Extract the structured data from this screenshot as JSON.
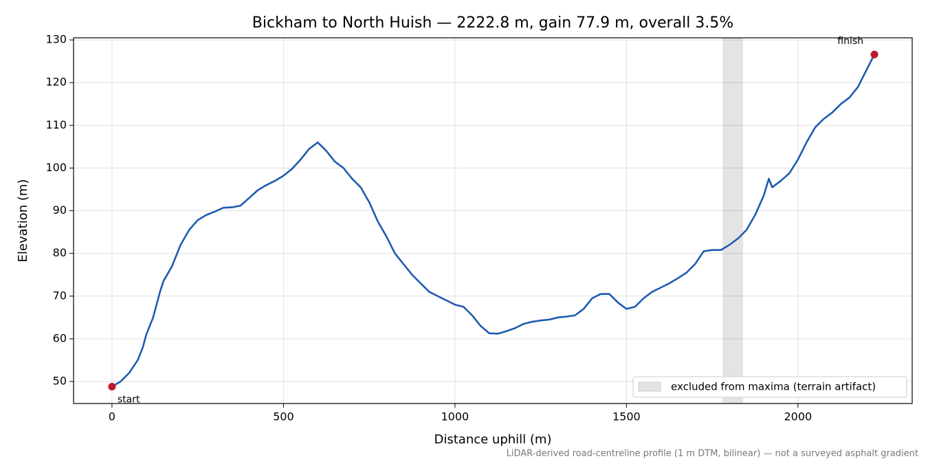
{
  "chart_data": {
    "type": "line",
    "title": "Bickham to North Huish — 2222.8 m, gain 77.9 m, overall 3.5%",
    "xlabel": "Distance uphill (m)",
    "ylabel": "Elevation (m)",
    "footnote": "LiDAR-derived road-centreline profile (1 m DTM, bilinear) — not a surveyed asphalt gradient",
    "x": [
      0,
      25,
      50,
      75,
      90,
      100,
      120,
      140,
      150,
      175,
      200,
      225,
      250,
      275,
      300,
      325,
      350,
      375,
      400,
      425,
      450,
      475,
      500,
      525,
      550,
      575,
      600,
      625,
      650,
      675,
      700,
      725,
      750,
      775,
      800,
      825,
      850,
      875,
      900,
      925,
      950,
      975,
      1000,
      1025,
      1050,
      1075,
      1100,
      1125,
      1150,
      1175,
      1200,
      1225,
      1250,
      1275,
      1300,
      1325,
      1350,
      1375,
      1400,
      1425,
      1450,
      1475,
      1500,
      1525,
      1550,
      1575,
      1600,
      1625,
      1650,
      1675,
      1700,
      1725,
      1750,
      1775,
      1800,
      1825,
      1850,
      1875,
      1900,
      1915,
      1925,
      1950,
      1975,
      2000,
      2025,
      2050,
      2075,
      2100,
      2125,
      2150,
      2175,
      2200,
      2222.8
    ],
    "values": [
      48.8,
      50,
      52,
      55,
      58,
      61,
      65,
      71,
      73.5,
      77,
      82,
      85.5,
      87.8,
      89,
      89.8,
      90.7,
      90.8,
      91.2,
      93,
      94.8,
      96,
      97,
      98.2,
      99.8,
      102,
      104.5,
      106,
      104,
      101.5,
      100,
      97.5,
      95.5,
      92,
      87.5,
      84,
      80,
      77.5,
      75,
      73,
      71,
      70,
      69,
      68,
      67.5,
      65.5,
      63,
      61.3,
      61.2,
      61.8,
      62.5,
      63.5,
      64,
      64.3,
      64.5,
      65,
      65.2,
      65.5,
      67,
      69.5,
      70.5,
      70.5,
      68.5,
      67,
      67.5,
      69.5,
      71,
      72,
      73,
      74.2,
      75.5,
      77.5,
      80.5,
      80.8,
      80.8,
      82,
      83.5,
      85.5,
      89,
      93.5,
      97.5,
      95.5,
      97,
      98.8,
      102,
      106,
      109.5,
      111.5,
      113,
      115,
      116.5,
      119,
      123,
      126.6
    ],
    "color": "#1f5bb0",
    "marker_color": "#c0182a",
    "annotations": [
      "start",
      "finish"
    ],
    "shaded_span": {
      "x": [
        1780,
        1840
      ],
      "label": "excluded from maxima (terrain artifact)",
      "color": "#e4e4e4"
    },
    "legend": "lower right",
    "grid": true,
    "xlim": [
      -112,
      2333
    ],
    "ylim": [
      44.85,
      130.5
    ],
    "xticks": [
      0,
      500,
      1000,
      1500,
      2000
    ],
    "yticks": [
      50,
      60,
      70,
      80,
      90,
      100,
      110,
      120,
      130
    ]
  }
}
